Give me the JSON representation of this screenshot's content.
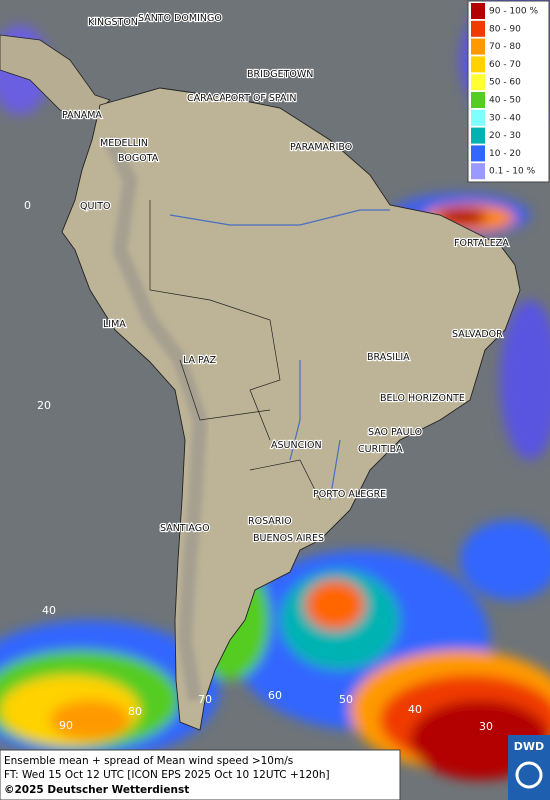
{
  "map": {
    "cities": [
      {
        "label": "KINGSTON"
      },
      {
        "label": "SANTO DOMINGO"
      },
      {
        "label": "BRIDGETOWN"
      },
      {
        "label": "CARACAS"
      },
      {
        "label": "PORT OF SPAIN"
      },
      {
        "label": "PANAMA"
      },
      {
        "label": "MEDELLIN"
      },
      {
        "label": "BOGOTA"
      },
      {
        "label": "PARAMARIBO"
      },
      {
        "label": "QUITO"
      },
      {
        "label": "FORTALEZA"
      },
      {
        "label": "LIMA"
      },
      {
        "label": "SALVADOR"
      },
      {
        "label": "BRASILIA"
      },
      {
        "label": "LA PAZ"
      },
      {
        "label": "BELO HORIZONTE"
      },
      {
        "label": "SAO PAULO"
      },
      {
        "label": "ASUNCION"
      },
      {
        "label": "CURITIBA"
      },
      {
        "label": "PORTO ALEGRE"
      },
      {
        "label": "ROSARIO"
      },
      {
        "label": "SANTIAGO"
      },
      {
        "label": "BUENOS AIRES"
      }
    ],
    "grid_labels": [
      "0",
      "20",
      "40",
      "90",
      "80",
      "70",
      "60",
      "50",
      "40",
      "30"
    ],
    "legend": [
      {
        "label": "90 - 100 %",
        "color": "#b30000"
      },
      {
        "label": "80 - 90",
        "color": "#f03b00"
      },
      {
        "label": "70 - 80",
        "color": "#ff9900"
      },
      {
        "label": "60 - 70",
        "color": "#ffd200"
      },
      {
        "label": "50 - 60",
        "color": "#ffff33"
      },
      {
        "label": "40 - 50",
        "color": "#55cc22"
      },
      {
        "label": "30 - 40",
        "color": "#80ffff"
      },
      {
        "label": "20 - 30",
        "color": "#00b3b3"
      },
      {
        "label": "10 - 20",
        "color": "#3366ff"
      },
      {
        "label": "0.1 - 10 %",
        "color": "#9999ff"
      }
    ],
    "footer": {
      "lines": [
        "Ensemble mean + spread of Mean wind speed >10m/s",
        "FT: Wed 15 Oct 12 UTC [ICON EPS 2025 Oct 10 12UTC +120h]"
      ],
      "copyright": "©2025 Deutscher Wetterdienst"
    },
    "logo": "DWD"
  }
}
